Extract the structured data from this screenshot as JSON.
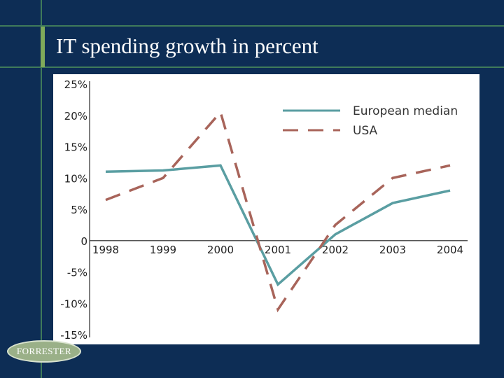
{
  "slide": {
    "title": "IT spending growth in percent",
    "logo_text": "FORRESTER"
  },
  "colors": {
    "background": "#0d2d55",
    "grid": "#3f7a5a",
    "accent_bar": "#7faa5a",
    "european_line": "#5a9ea2",
    "usa_line": "#a8645a",
    "axis_text": "#222222"
  },
  "chart_data": {
    "type": "line",
    "title": "",
    "xlabel": "",
    "ylabel": "",
    "categories": [
      "1998",
      "1999",
      "2000",
      "2001",
      "2002",
      "2003",
      "2004"
    ],
    "ylim": [
      -15,
      25
    ],
    "yticks": [
      25,
      20,
      15,
      10,
      5,
      0,
      -5,
      -10,
      -15
    ],
    "ytick_labels": [
      "25%",
      "20%",
      "15%",
      "10%",
      "5%",
      "0",
      "-5%",
      "-10%",
      "-15%"
    ],
    "legend_position": "top-right",
    "series": [
      {
        "name": "European median",
        "style": "solid",
        "values": [
          11,
          11.2,
          12,
          -7,
          1,
          6,
          8
        ]
      },
      {
        "name": "USA",
        "style": "dashed",
        "values": [
          6.5,
          10,
          20.5,
          -11,
          2.5,
          10,
          12
        ]
      }
    ]
  }
}
